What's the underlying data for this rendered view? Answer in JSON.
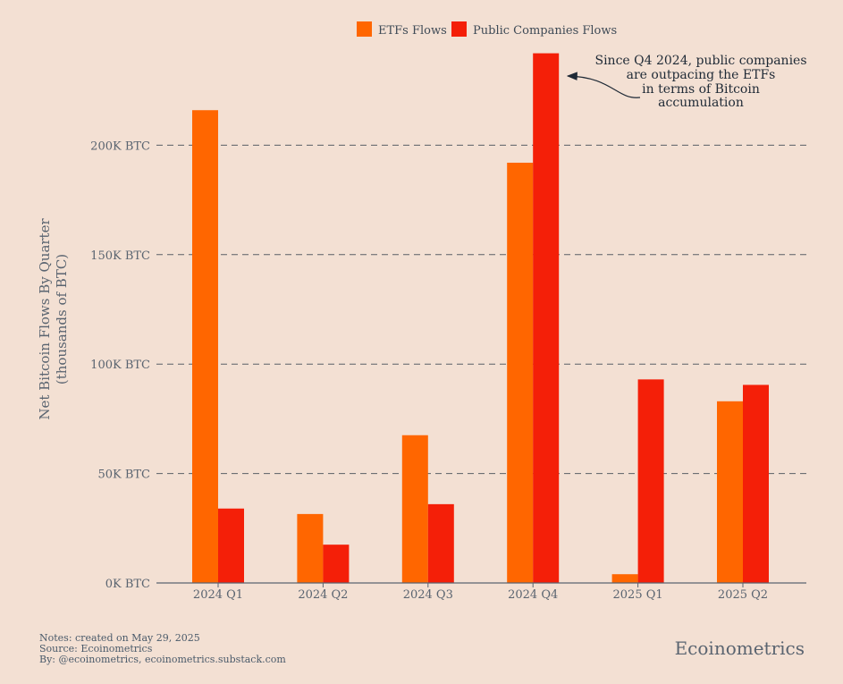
{
  "colors": {
    "background": "#f3e0d3",
    "etf": "#ff6600",
    "public": "#f41f08",
    "grid": "#5a5f66",
    "axis": "#5a6470",
    "text": "#4a5a6a",
    "annotation": "#1f2a36"
  },
  "legend": {
    "etf_label": "ETFs Flows",
    "public_label": "Public Companies Flows",
    "placement": "top-center"
  },
  "annotation": {
    "lines": [
      "Since Q4 2024, public companies",
      "are outpacing the ETFs",
      "in terms of Bitcoin",
      "accumulation"
    ]
  },
  "footer": {
    "notes": "Notes: created on May 29, 2025",
    "source": "Source: Ecoinometrics",
    "by": "By: @ecoinometrics, ecoinometrics.substack.com",
    "brand": "Ecoinometrics"
  },
  "chart_data": {
    "type": "bar",
    "title": "",
    "ylabel": "Net Bitcoin Flows By Quarter\n(thousands of BTC)",
    "ylabel_lines": [
      "Net Bitcoin Flows By Quarter",
      "(thousands of BTC)"
    ],
    "xlabel": "",
    "categories": [
      "2024 Q1",
      "2024 Q2",
      "2024 Q3",
      "2024 Q4",
      "2025 Q1",
      "2025 Q2"
    ],
    "series": [
      {
        "name": "ETFs Flows",
        "values": [
          216,
          31.5,
          67.5,
          192,
          4,
          83
        ]
      },
      {
        "name": "Public Companies Flows",
        "values": [
          34,
          17.5,
          36,
          242,
          93,
          90.5
        ]
      }
    ],
    "ylim": [
      0,
      250
    ],
    "yticks": [
      0,
      50,
      100,
      150,
      200
    ],
    "ytick_labels": [
      "0K BTC",
      "50K BTC",
      "100K BTC",
      "150K BTC",
      "200K BTC"
    ],
    "grid": "horizontal dashed",
    "legend_position": "top-center"
  }
}
